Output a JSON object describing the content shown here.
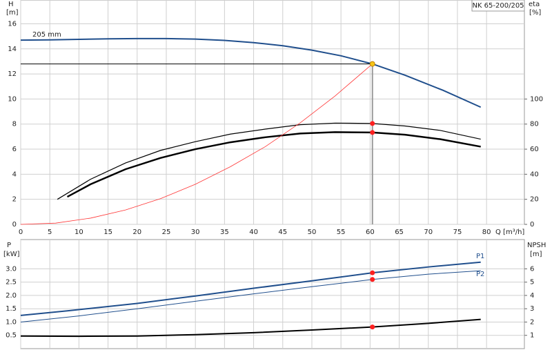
{
  "chart_data": [
    {
      "type": "line",
      "title": "NK 65-200/205",
      "y_label": "H",
      "y_unit": "[m]",
      "y2_label": "eta",
      "y2_unit": "[%]",
      "x_label": "Q [m³/h]",
      "xlim": [
        0,
        86.5
      ],
      "xticks": [
        0,
        5,
        10,
        15,
        20,
        25,
        30,
        35,
        40,
        45,
        50,
        55,
        60,
        65,
        70,
        75,
        80
      ],
      "ylim": [
        0,
        17.9
      ],
      "yticks": [
        0,
        2,
        4,
        6,
        8,
        10,
        12,
        14,
        16
      ],
      "y2lim": [
        0,
        179
      ],
      "y2ticks": [
        0,
        20,
        40,
        60,
        80,
        100
      ],
      "grid": true,
      "operating_point": {
        "x": 60.4
      },
      "series": [
        {
          "name": "205 mm",
          "color": "#1f4e8c",
          "width": 2,
          "x": [
            0,
            5,
            10,
            15,
            20,
            25,
            30,
            35,
            40,
            45,
            50,
            55,
            60.4,
            66,
            72.5,
            79
          ],
          "values": [
            14.7,
            14.72,
            14.76,
            14.8,
            14.82,
            14.82,
            14.78,
            14.68,
            14.5,
            14.25,
            13.9,
            13.45,
            12.8,
            11.9,
            10.7,
            9.35
          ],
          "marker_color": "#f5c518"
        },
        {
          "color": "#000000",
          "width": 1.2,
          "axis": "y2",
          "x": [
            6.3,
            12,
            18,
            24,
            30,
            36,
            42,
            48,
            54,
            60.4,
            66,
            72,
            79
          ],
          "values": [
            20,
            36,
            49,
            59,
            66,
            72,
            76,
            79.5,
            80.8,
            80.5,
            78.5,
            75,
            68
          ],
          "marker_color": "#ff2020"
        },
        {
          "color": "#000000",
          "width": 2.5,
          "axis": "y2",
          "x": [
            8,
            12,
            18,
            24,
            30,
            36,
            42,
            48,
            54,
            60.4,
            66,
            72,
            79
          ],
          "values": [
            22,
            32,
            44,
            53,
            60,
            65.5,
            69.5,
            72.5,
            73.6,
            73.3,
            71.5,
            68,
            62
          ],
          "marker_color": "#ff2020"
        },
        {
          "color": "#ff3333",
          "width": 0.8,
          "x": [
            0,
            6,
            12,
            18,
            24,
            30,
            36,
            42,
            48,
            54,
            60.4
          ],
          "values": [
            0,
            0.1,
            0.5,
            1.15,
            2.05,
            3.2,
            4.6,
            6.2,
            8.1,
            10.25,
            12.8
          ]
        }
      ]
    },
    {
      "type": "line",
      "y_label": "P",
      "y_unit": "[kW]",
      "y2_label": "NPSH",
      "y2_unit": "[m]",
      "xlim": [
        0,
        86.5
      ],
      "ylim": [
        0,
        4.1
      ],
      "yticks": [
        {
          "value": 0.5,
          "label": "0.5"
        },
        {
          "value": 1,
          "label": "1.0"
        },
        {
          "value": 1.5,
          "label": "1.5"
        },
        {
          "value": 2,
          "label": "2.0"
        },
        {
          "value": 2.5,
          "label": "2.5"
        },
        {
          "value": 3,
          "label": "3.0"
        }
      ],
      "y2lim": [
        0,
        8.2
      ],
      "y2ticks": [
        1,
        2,
        3,
        4,
        5,
        6
      ],
      "grid": true,
      "operating_point": {
        "x": 60.4
      },
      "series": [
        {
          "name": "P1",
          "color": "#1f4e8c",
          "width": 2,
          "x": [
            0,
            8,
            20,
            30,
            40,
            50,
            60.4,
            70,
            79
          ],
          "values": [
            1.25,
            1.42,
            1.7,
            1.98,
            2.27,
            2.55,
            2.85,
            3.07,
            3.25
          ],
          "marker_color": "#ff2020"
        },
        {
          "name": "P2",
          "color": "#1f4e8c",
          "width": 1,
          "x": [
            0,
            10,
            20,
            30,
            40,
            50,
            60.4,
            70,
            79
          ],
          "values": [
            1.0,
            1.23,
            1.5,
            1.78,
            2.06,
            2.33,
            2.6,
            2.8,
            2.93
          ],
          "marker_color": "#ff2020"
        },
        {
          "color": "#000000",
          "width": 2,
          "axis": "y2",
          "x": [
            0,
            10,
            20,
            30,
            40,
            50,
            60.4,
            70,
            79
          ],
          "values": [
            0.95,
            0.93,
            0.95,
            1.05,
            1.2,
            1.4,
            1.63,
            1.9,
            2.2
          ],
          "marker_color": "#ff2020"
        }
      ]
    }
  ]
}
